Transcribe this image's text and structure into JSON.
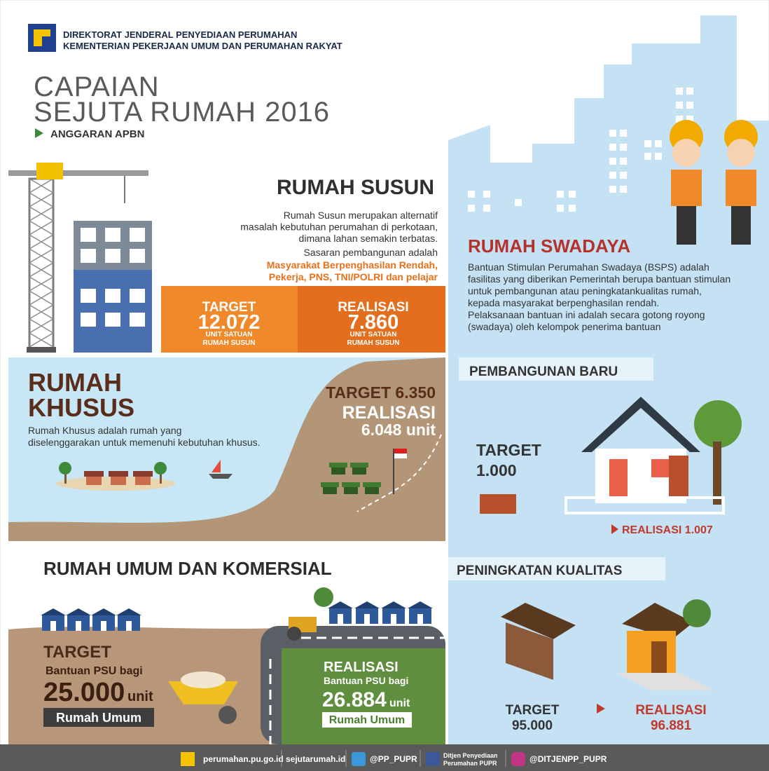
{
  "header": {
    "org_line1": "DIREKTORAT JENDERAL PENYEDIAAN PERUMAHAN",
    "org_line2": "KEMENTERIAN PEKERJAAN UMUM DAN PERUMAHAN RAKYAT",
    "title_line1": "CAPAIAN",
    "title_line2": "SEJUTA RUMAH 2016",
    "subtitle": "ANGGARAN APBN"
  },
  "rumah_susun": {
    "title": "RUMAH SUSUN",
    "description": [
      "Rumah Susun merupakan alternatif",
      "masalah kebutuhan perumahan di perkotaan,",
      "dimana lahan semakin terbatas."
    ],
    "target_intro": "Sasaran pembangunan adalah",
    "target_groups": [
      "Masyarakat Berpenghasilan Rendah,",
      "Pekerja, PNS, TNI/POLRI dan pelajar"
    ],
    "target": {
      "label": "TARGET",
      "value": "12.072",
      "unit": [
        "UNIT  SATUAN",
        "RUMAH SUSUN"
      ]
    },
    "realisasi": {
      "label": "REALISASI",
      "value": "7.860",
      "unit": [
        "UNIT  SATUAN",
        "RUMAH SUSUN"
      ]
    }
  },
  "rumah_khusus": {
    "title": [
      "RUMAH",
      "KHUSUS"
    ],
    "description": [
      "Rumah Khusus adalah rumah yang",
      "diselenggarakan untuk memenuhi kebutuhan khusus."
    ],
    "target": "TARGET 6.350",
    "realisasi_label": "REALISASI",
    "realisasi_value": "6.048 unit"
  },
  "rumah_swadaya": {
    "title": "RUMAH SWADAYA",
    "description": [
      "Bantuan Stimulan Perumahan Swadaya (BSPS) adalah",
      "fasilitas yang diberikan Pemerintah berupa bantuan stimulan",
      "untuk pembangunan atau peningkatankualitas rumah,",
      "kepada masyarakat berpenghasilan rendah.",
      "Pelaksanaan bantuan ini adalah secara gotong royong",
      "(swadaya) oleh kelompok penerima bantuan"
    ]
  },
  "pembangunan_baru": {
    "title": "PEMBANGUNAN BARU",
    "target_label": "TARGET",
    "target_value": "1.000",
    "realisasi": "REALISASI 1.007"
  },
  "peningkatan_kualitas": {
    "title": "PENINGKATAN KUALITAS",
    "target_label": "TARGET",
    "target_value": "95.000",
    "realisasi_label": "REALISASI",
    "realisasi_value": "96.881"
  },
  "rumah_umum": {
    "title": "RUMAH UMUM DAN KOMERSIAL",
    "target": {
      "label": "TARGET",
      "description": "Bantuan PSU bagi",
      "value": "25.000",
      "unit": "unit",
      "tag": "Rumah Umum"
    },
    "realisasi": {
      "label": "REALISASI",
      "description": "Bantuan PSU bagi",
      "value": "26.884",
      "unit": "unit",
      "tag": "Rumah Umum"
    }
  },
  "footer": {
    "website": "perumahan.pu.go.id",
    "website2": "sejutarumah.id",
    "twitter": "@PP_PUPR",
    "facebook": [
      "Ditjen Penyediaan",
      "Perumahan PUPR"
    ],
    "instagram": "@DITJENPP_PUPR"
  }
}
